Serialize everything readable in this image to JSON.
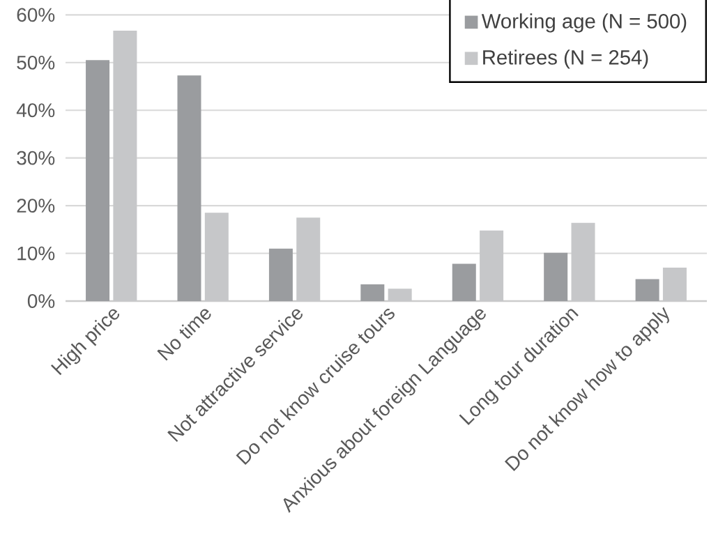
{
  "chart_data": {
    "type": "bar",
    "categories": [
      "High price",
      "No time",
      "Not attractive service",
      "Do not know cruise tours",
      "Anxious about foreign Language",
      "Long tour duration",
      "Do not know how to apply"
    ],
    "series": [
      {
        "name": "Working age (N = 500)",
        "color": "#9a9c9f",
        "values": [
          50.5,
          47.3,
          11.0,
          3.5,
          7.8,
          10.1,
          4.6
        ]
      },
      {
        "name": "Retirees (N = 254)",
        "color": "#c6c7c9",
        "values": [
          56.7,
          18.5,
          17.5,
          2.6,
          14.8,
          16.4,
          7.0
        ]
      }
    ],
    "ylim": [
      0,
      60
    ],
    "yticks": [
      {
        "value": 0,
        "label": "0%"
      },
      {
        "value": 10,
        "label": "10%"
      },
      {
        "value": 20,
        "label": "20%"
      },
      {
        "value": 30,
        "label": "30%"
      },
      {
        "value": 40,
        "label": "40%"
      },
      {
        "value": 50,
        "label": "50%"
      },
      {
        "value": 60,
        "label": "60%"
      }
    ],
    "grid": "y",
    "legend": "top right"
  }
}
